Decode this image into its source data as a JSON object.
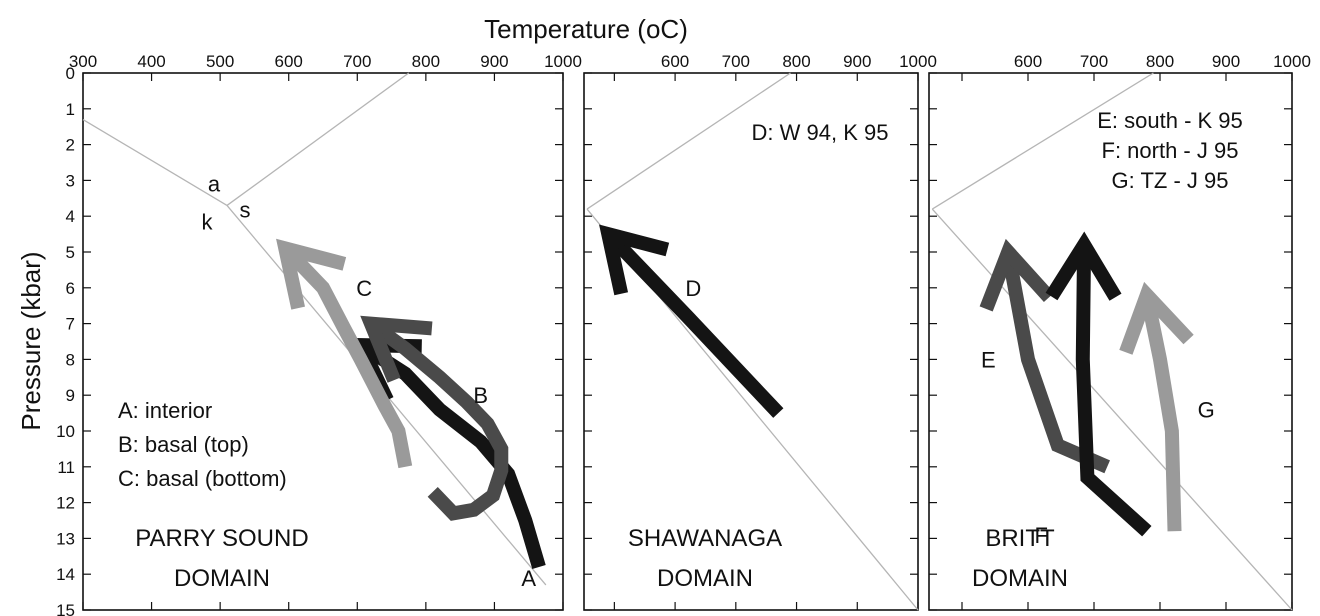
{
  "chart_data": {
    "type": "line",
    "xlabel": "Temperature (oC)",
    "ylabel": "Pressure (kbar)",
    "ylim": [
      0,
      15
    ],
    "y_ticks": [
      0,
      1,
      2,
      3,
      4,
      5,
      6,
      7,
      8,
      9,
      10,
      11,
      12,
      13,
      14,
      15
    ],
    "colors": {
      "dark": "#141414",
      "mid": "#4a4a4a",
      "light": "#9a9a9a",
      "reaction_line": "#b5b5b5"
    },
    "panels": [
      {
        "domain": "PARRY SOUND DOMAIN",
        "domain_lines": [
          "PARRY SOUND",
          "DOMAIN"
        ],
        "xlim": [
          300,
          1000
        ],
        "x_ticks": [
          300,
          400,
          500,
          600,
          700,
          800,
          900,
          1000
        ],
        "x_tick_labels": [
          "300",
          "400",
          "500",
          "600",
          "700",
          "800",
          "900",
          "1000"
        ],
        "legend": [
          "A: interior",
          "B: basal (top)",
          "C: basal (bottom)"
        ],
        "triple_point_labels": [
          "a",
          "k",
          "s"
        ],
        "reaction_lines": [
          [
            [
              300,
              1.3
            ],
            [
              510,
              3.7
            ]
          ],
          [
            [
              510,
              3.7
            ],
            [
              775,
              0
            ]
          ],
          [
            [
              510,
              3.7
            ],
            [
              975,
              14.3
            ]
          ]
        ],
        "series": [
          {
            "name": "A",
            "color": "dark",
            "path": [
              [
                965,
                13.8
              ],
              [
                945,
                12.5
              ],
              [
                920,
                11.2
              ],
              [
                880,
                10.3
              ],
              [
                820,
                9.4
              ],
              [
                770,
                8.4
              ],
              [
                705,
                7.6
              ]
            ],
            "head": "end",
            "label_pos": [
              950,
              14.1
            ]
          },
          {
            "name": "B",
            "color": "mid",
            "path": [
              [
                810,
                11.7
              ],
              [
                840,
                12.3
              ],
              [
                870,
                12.2
              ],
              [
                898,
                11.8
              ],
              [
                910,
                11.1
              ],
              [
                910,
                10.5
              ],
              [
                890,
                9.8
              ],
              [
                860,
                9.2
              ],
              [
                820,
                8.5
              ],
              [
                770,
                7.7
              ],
              [
                720,
                7.0
              ]
            ],
            "head": "end",
            "label_pos": [
              880,
              9.0
            ]
          },
          {
            "name": "C",
            "color": "light",
            "path": [
              [
                770,
                11.0
              ],
              [
                760,
                10.0
              ],
              [
                740,
                9.3
              ],
              [
                705,
                8.0
              ],
              [
                680,
                7.1
              ],
              [
                650,
                6.0
              ],
              [
                595,
                4.9
              ]
            ],
            "head": "end",
            "label_pos": [
              710,
              6.0
            ]
          }
        ]
      },
      {
        "domain": "SHAWANAGA DOMAIN",
        "domain_lines": [
          "SHAWANAGA",
          "DOMAIN"
        ],
        "xlim": [
          450,
          1000
        ],
        "x_ticks": [
          500,
          600,
          700,
          800,
          900,
          1000
        ],
        "x_tick_labels": [
          "",
          "600",
          "700",
          "800",
          "900",
          "1000"
        ],
        "legend": [
          "D: W 94, K 95"
        ],
        "reaction_lines": [
          [
            [
              455,
              3.8
            ],
            [
              790,
              0
            ]
          ],
          [
            [
              455,
              3.8
            ],
            [
              1000,
              15
            ]
          ]
        ],
        "series": [
          {
            "name": "D",
            "color": "dark",
            "path": [
              [
                770,
                9.5
              ],
              [
                620,
                6.8
              ],
              [
                490,
                4.5
              ]
            ],
            "head": "end",
            "label_pos": [
              630,
              6.0
            ]
          }
        ]
      },
      {
        "domain": "BRITT DOMAIN",
        "domain_lines": [
          "BRITT",
          "DOMAIN"
        ],
        "xlim": [
          450,
          1000
        ],
        "x_ticks": [
          500,
          600,
          700,
          800,
          900,
          1000
        ],
        "x_tick_labels": [
          "",
          "600",
          "700",
          "800",
          "900",
          "1000"
        ],
        "legend": [
          "E: south - K 95",
          "F: north - J 95",
          "G: TZ - J 95"
        ],
        "reaction_lines": [
          [
            [
              455,
              3.8
            ],
            [
              790,
              0
            ]
          ],
          [
            [
              455,
              3.8
            ],
            [
              1000,
              15
            ]
          ]
        ],
        "series": [
          {
            "name": "E",
            "color": "mid",
            "path": [
              [
                720,
                11.0
              ],
              [
                645,
                10.4
              ],
              [
                600,
                8.0
              ],
              [
                570,
                5.0
              ]
            ],
            "head": "end",
            "label_pos": [
              540,
              8.0
            ]
          },
          {
            "name": "F",
            "color": "dark",
            "path": [
              [
                780,
                12.8
              ],
              [
                690,
                11.3
              ],
              [
                683,
                8.0
              ],
              [
                685,
                4.8
              ]
            ],
            "head": "end",
            "label_pos": [
              620,
              12.9
            ]
          },
          {
            "name": "G",
            "color": "light",
            "path": [
              [
                822,
                12.8
              ],
              [
                818,
                10.0
              ],
              [
                800,
                8.0
              ],
              [
                780,
                6.2
              ]
            ],
            "head": "end",
            "label_pos": [
              870,
              9.4
            ]
          }
        ]
      }
    ]
  }
}
